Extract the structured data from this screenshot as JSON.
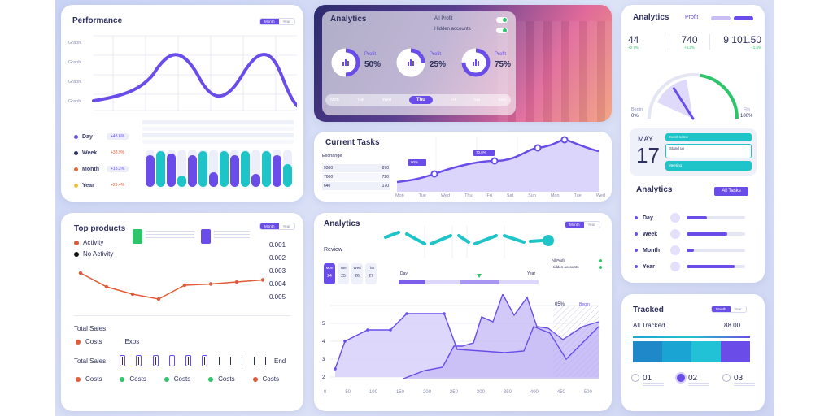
{
  "performance": {
    "title": "Performance",
    "toggle": [
      "Month",
      "Year"
    ],
    "y_labels": [
      "Graph",
      "Graph",
      "Graph",
      "Graph"
    ],
    "legend": [
      {
        "label": "Day",
        "badge": "+48.6%",
        "delta": "+48.6%",
        "color": "#6a4de8"
      },
      {
        "label": "Week",
        "badge": "+38.9%",
        "delta": "+38.9%",
        "color": "#2d2f5c"
      },
      {
        "label": "Month",
        "badge": "+18.2%",
        "delta": "+18.2%",
        "color": "#e36a3c"
      },
      {
        "label": "Year",
        "badge": "+29.4%",
        "delta": "+29.4%",
        "color": "#f0c23c"
      }
    ],
    "bars": [
      {
        "a": 0.85,
        "b": 0.95
      },
      {
        "a": 0.9,
        "b": 0.3
      },
      {
        "a": 0.85,
        "b": 0.95
      },
      {
        "a": 0.4,
        "b": 0.95
      },
      {
        "a": 0.85,
        "b": 0.95
      },
      {
        "a": 0.35,
        "b": 0.95
      },
      {
        "a": 0.85,
        "b": 0.6
      }
    ]
  },
  "analytics_top": {
    "title": "Analytics",
    "switch1": "All Profit",
    "switch2": "Hidden accounts",
    "rings": [
      {
        "label": "Profit",
        "value": "50%",
        "pct": 0.5
      },
      {
        "label": "Profit",
        "value": "25%",
        "pct": 0.25
      },
      {
        "label": "Profit",
        "value": "75%",
        "pct": 0.75
      }
    ],
    "days": [
      "Mon",
      "Tue",
      "Wed",
      "Thu",
      "Fri",
      "Sat",
      "Sun"
    ],
    "active_day": "Thu"
  },
  "analytics_right": {
    "title": "Analytics",
    "tab": "Profit",
    "stats": [
      {
        "value": "44",
        "sub": "+2.7%"
      },
      {
        "value": "740",
        "sub": "+6.2%"
      },
      {
        "value": "9 101.50",
        "sub": "+1.5%"
      }
    ],
    "gauge_left_label": "Begin",
    "gauge_left_value": "0%",
    "gauge_right_label": "Fin",
    "gauge_right_value": "100%",
    "gauge_level": 0.55,
    "date_month": "MAY",
    "date_day": "17",
    "events": [
      "Event name",
      "Stand up",
      "Meeting"
    ]
  },
  "current_tasks": {
    "title": "Current Tasks",
    "exchange_label": "Exchange",
    "rows": [
      {
        "left": "9300",
        "right": "870"
      },
      {
        "left": "7000",
        "right": "720"
      },
      {
        "left": "640",
        "right": "170"
      }
    ],
    "days": [
      "Mon",
      "Tue",
      "Wed",
      "Thu",
      "Fri",
      "Sat",
      "Sun",
      "Mon",
      "Tue",
      "Wed"
    ],
    "tags": [
      "90%",
      "70.0%"
    ]
  },
  "analytics_list": {
    "title": "Analytics",
    "button": "All Tasks",
    "items": [
      {
        "label": "Day",
        "fill": 0.35
      },
      {
        "label": "Week",
        "fill": 0.7
      },
      {
        "label": "Month",
        "fill": 0.12
      },
      {
        "label": "Year",
        "fill": 0.82
      }
    ]
  },
  "top_products": {
    "title": "Top products",
    "toggle": [
      "Month",
      "Year"
    ],
    "legend": [
      {
        "label": "Activity",
        "color": "#e15a3a"
      },
      {
        "label": "No Activity",
        "color": "#111111"
      }
    ],
    "y_values": [
      "0.001",
      "0.002",
      "0.003",
      "0.004",
      "0.005"
    ],
    "series": [
      0.72,
      0.38,
      0.2,
      0.08,
      0.42,
      0.45,
      0.5,
      0.55
    ],
    "total_sales": "Total Sales",
    "costs": "Costs",
    "exps": "Exps",
    "total_sales_2": "Total Sales",
    "end": "End",
    "cost_row": [
      {
        "label": "Costs",
        "color": "#e15a3a"
      },
      {
        "label": "Costs",
        "color": "#2dc56a"
      },
      {
        "label": "Costs",
        "color": "#2dc56a"
      },
      {
        "label": "Costs",
        "color": "#2dc56a"
      },
      {
        "label": "Costs",
        "color": "#e15a3a"
      }
    ]
  },
  "analytics_review": {
    "title": "Analytics",
    "toggle": [
      "Month",
      "Year"
    ],
    "review": "Review",
    "dates": [
      {
        "day": "Mon",
        "num": "24"
      },
      {
        "day": "Tue",
        "num": "25"
      },
      {
        "day": "Wed",
        "num": "26"
      },
      {
        "day": "Thu",
        "num": "27"
      }
    ],
    "range_start": "Day",
    "range_end": "Year",
    "switch1": "All Profit",
    "switch2": "Hidden accounts",
    "peak_label": "05%",
    "peak_tag": "Begin",
    "y_ticks": [
      "5",
      "4",
      "3",
      "2"
    ],
    "x_ticks": [
      "0",
      "50",
      "100",
      "150",
      "200",
      "250",
      "300",
      "350",
      "400",
      "450",
      "500"
    ]
  },
  "tracked": {
    "title": "Tracked",
    "toggle": [
      "Month",
      "Year"
    ],
    "all_label": "All Tracked",
    "all_value": "88.00",
    "steps": [
      {
        "num": "01",
        "color": "#b0b4cc"
      },
      {
        "num": "02",
        "color": "#6a4de8"
      },
      {
        "num": "03",
        "color": "#b0b4cc"
      }
    ],
    "blocks": [
      "#1e88c8",
      "#1aa4d4",
      "#22c2d6",
      "#6a4de8"
    ]
  },
  "colors": {
    "accent": "#6a4de8",
    "teal": "#1ec4c8",
    "red": "#e15a3a",
    "green": "#2dc56a"
  }
}
